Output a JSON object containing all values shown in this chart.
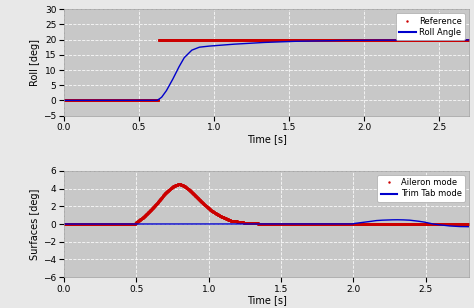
{
  "top": {
    "ylabel": "Roll [deg]",
    "xlabel": "Time [s]",
    "xlim": [
      0,
      2.7
    ],
    "ylim": [
      -5,
      30
    ],
    "yticks": [
      -5,
      0,
      5,
      10,
      15,
      20,
      25,
      30
    ],
    "xticks": [
      0,
      0.5,
      1.0,
      1.5,
      2.0,
      2.5
    ],
    "ref_color": "#cc0000",
    "roll_color": "#0000cc",
    "legend_labels": [
      "Reference",
      "Roll Angle"
    ],
    "bg_color": "#c8c8c8"
  },
  "bottom": {
    "ylabel": "Surfaces [deg]",
    "xlabel": "Time [s]",
    "xlim": [
      0,
      2.8
    ],
    "ylim": [
      -6,
      6
    ],
    "yticks": [
      -6,
      -4,
      -2,
      0,
      2,
      4,
      6
    ],
    "xticks": [
      0,
      0.5,
      1.0,
      1.5,
      2.0,
      2.5
    ],
    "aileron_color": "#cc0000",
    "trimtab_color": "#0000cc",
    "legend_labels": [
      "Aileron mode",
      "Trim Tab mode"
    ],
    "bg_color": "#c8c8c8"
  },
  "fig_bg": "#e8e8e8",
  "t_roll_pts": [
    0,
    0.62,
    0.63,
    0.65,
    0.68,
    0.72,
    0.76,
    0.8,
    0.85,
    0.9,
    0.95,
    1.0,
    1.1,
    1.2,
    1.3,
    1.4,
    1.5,
    1.6,
    1.8,
    2.0,
    2.7
  ],
  "v_roll_pts": [
    0,
    0,
    0.3,
    1.0,
    3.0,
    6.5,
    10.5,
    14.0,
    16.5,
    17.5,
    17.8,
    18.0,
    18.4,
    18.7,
    19.0,
    19.2,
    19.4,
    19.5,
    19.7,
    19.8,
    19.9
  ],
  "t_ail_pts": [
    0,
    0.49,
    0.5,
    0.55,
    0.6,
    0.65,
    0.7,
    0.75,
    0.78,
    0.8,
    0.83,
    0.87,
    0.92,
    0.97,
    1.02,
    1.08,
    1.15,
    1.25,
    1.35,
    1.5,
    2.8
  ],
  "v_ail_pts": [
    0,
    0,
    0.2,
    0.8,
    1.6,
    2.5,
    3.5,
    4.2,
    4.45,
    4.5,
    4.3,
    3.8,
    3.0,
    2.2,
    1.5,
    0.9,
    0.4,
    0.15,
    0.05,
    0.0,
    0.0
  ],
  "t_trim_pts": [
    0,
    1.99,
    2.0,
    2.05,
    2.1,
    2.15,
    2.18,
    2.22,
    2.28,
    2.32,
    2.38,
    2.42,
    2.48,
    2.52,
    2.55,
    2.6,
    2.65,
    2.72,
    2.8
  ],
  "v_trim_pts": [
    0,
    0,
    0.05,
    0.15,
    0.25,
    0.38,
    0.42,
    0.45,
    0.48,
    0.48,
    0.45,
    0.38,
    0.25,
    0.12,
    0.0,
    -0.1,
    -0.2,
    -0.28,
    -0.3
  ]
}
